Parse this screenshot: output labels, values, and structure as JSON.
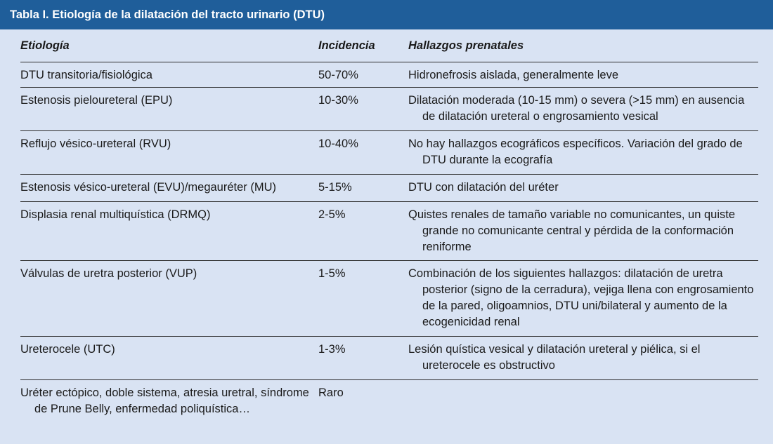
{
  "title": "Tabla I.  Etiología de la dilatación del tracto urinario (DTU)",
  "headers": {
    "etiologia": "Etiología",
    "incidencia": "Incidencia",
    "hallazgos": "Hallazgos prenatales"
  },
  "rows": [
    {
      "etiologia": "DTU transitoria/fisiológica",
      "incidencia": "50-70%",
      "hallazgos": "Hidronefrosis aislada, generalmente leve"
    },
    {
      "etiologia": "Estenosis pieloureteral (EPU)",
      "incidencia": "10-30%",
      "hallazgos": "Dilatación moderada (10-15 mm) o severa (>15 mm) en ausencia de dilatación ureteral o engrosamiento vesical"
    },
    {
      "etiologia": "Reflujo vésico-ureteral (RVU)",
      "incidencia": "10-40%",
      "hallazgos": "No hay hallazgos ecográficos específicos. Variación del grado de DTU durante la ecografía"
    },
    {
      "etiologia": "Estenosis vésico-ureteral (EVU)/megauréter (MU)",
      "incidencia": "5-15%",
      "hallazgos": "DTU con dilatación del uréter"
    },
    {
      "etiologia": "Displasia renal multiquística (DRMQ)",
      "incidencia": "2-5%",
      "hallazgos": "Quistes renales de tamaño variable no comunicantes, un quiste grande no comunicante central y pérdida de la conformación reniforme"
    },
    {
      "etiologia": "Válvulas de uretra posterior (VUP)",
      "incidencia": "1-5%",
      "hallazgos": "Combinación de los siguientes hallazgos: dilatación de uretra posterior (signo de la cerradura), vejiga llena con engrosamiento de la pared, oligoamnios, DTU uni/bilateral y aumento de la ecogenicidad renal"
    },
    {
      "etiologia": "Ureterocele (UTC)",
      "incidencia": "1-3%",
      "hallazgos": "Lesión quística vesical y dilatación ureteral y piélica, si el ureterocele es obstructivo"
    },
    {
      "etiologia": "Uréter ectópico, doble sistema, atresia uretral, síndrome de Prune Belly, enfermedad poliquística…",
      "incidencia": "Raro",
      "hallazgos": ""
    }
  ]
}
